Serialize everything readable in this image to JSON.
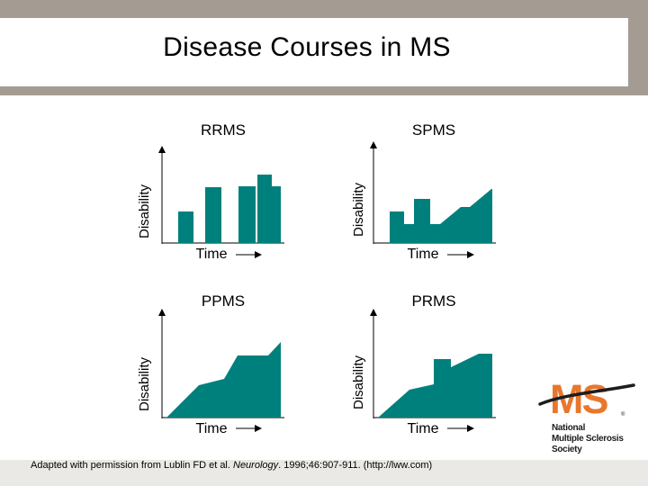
{
  "slide": {
    "title": "Disease Courses in MS",
    "citation_before": "Adapted with permission from Lublin FD et al. ",
    "citation_journal": "Neurology",
    "citation_after": ". 1996;46:907-911. (http://lww.com)"
  },
  "colors": {
    "teal": "#00807c",
    "header": "#a49c93",
    "footer": "#ebe9e5",
    "logo_orange": "#e8772e"
  },
  "panels": [
    {
      "name": "RRMS",
      "ylabel": "Disability",
      "xlabel": "Time"
    },
    {
      "name": "SPMS",
      "ylabel": "Disability",
      "xlabel": "Time"
    },
    {
      "name": "PPMS",
      "ylabel": "Disability",
      "xlabel": "Time"
    },
    {
      "name": "PRMS",
      "ylabel": "Disability",
      "xlabel": "Time"
    }
  ],
  "logo": {
    "mark": "MS",
    "org_lines": [
      "National",
      "Multiple Sclerosis",
      "Society"
    ],
    "registered": "®"
  }
}
